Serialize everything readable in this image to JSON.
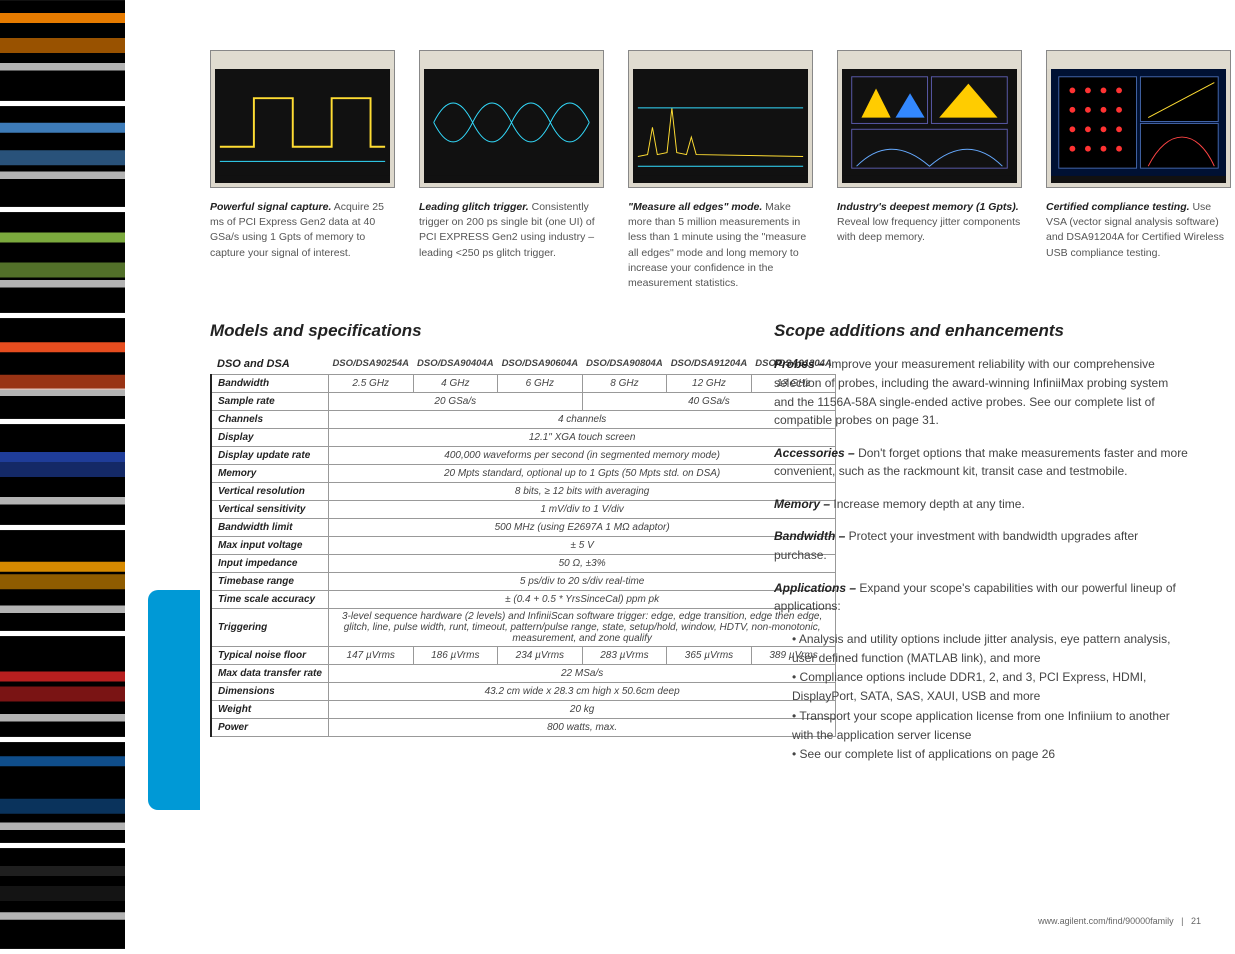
{
  "sidebar_colors": [
    "#ff8800",
    "#4488cc",
    "#88bb44",
    "#ff5522",
    "#2244aa",
    "#ee9900",
    "#cc2222",
    "#115599",
    "#222222"
  ],
  "shots": [
    {
      "title": "Powerful signal capture.",
      "desc": "Acquire 25 ms of PCI Express Gen2 data at 40 GSa/s using 1 Gpts of memory to capture your signal of interest.",
      "wave": "pulse"
    },
    {
      "title": "Leading glitch trigger.",
      "desc": "Consistently trigger on 200 ps single bit (one UI) of PCI EXPRESS Gen2 using industry – leading <250 ps glitch trigger.",
      "wave": "eye"
    },
    {
      "title": "\"Measure all edges\" mode.",
      "desc": "Make more than 5 million measurements in less than 1 minute using the \"measure all edges\" mode and long memory to increase your confidence in the measurement statistics.",
      "wave": "jitter"
    },
    {
      "title": "Industry's deepest memory (1 Gpts).",
      "desc": "Reveal low frequency jitter components with deep memory.",
      "wave": "hist"
    },
    {
      "title": "Certified compliance testing.",
      "desc": "Use VSA (vector signal analysis software) and DSA91204A for Certified Wireless USB compliance testing.",
      "wave": "constellation"
    }
  ],
  "heading_left": "Models and specifications",
  "table": {
    "header_label": "DSO and DSA",
    "models": [
      "DSO/DSA90254A",
      "DSO/DSA90404A",
      "DSO/DSA90604A",
      "DSO/DSA90804A",
      "DSO/DSA91204A",
      "DSO/DSA91304A"
    ],
    "rows": [
      {
        "label": "Bandwidth",
        "cells": [
          {
            "t": "2.5 GHz"
          },
          {
            "t": "4 GHz"
          },
          {
            "t": "6 GHz"
          },
          {
            "t": "8 GHz"
          },
          {
            "t": "12 GHz"
          },
          {
            "t": "13 GHz"
          }
        ]
      },
      {
        "label": "Sample rate",
        "cells": [
          {
            "t": "20 GSa/s",
            "span": 3
          },
          {
            "t": "40 GSa/s",
            "span": 3
          }
        ]
      },
      {
        "label": "Channels",
        "cells": [
          {
            "t": "4 channels",
            "span": 6
          }
        ]
      },
      {
        "label": "Display",
        "cells": [
          {
            "t": "12.1\" XGA touch screen",
            "span": 6
          }
        ]
      },
      {
        "label": "Display update rate",
        "cells": [
          {
            "t": "400,000 waveforms per second (in segmented memory mode)",
            "span": 6
          }
        ]
      },
      {
        "label": "Memory",
        "cells": [
          {
            "t": "20 Mpts standard, optional up to 1 Gpts (50 Mpts std. on DSA)",
            "span": 6
          }
        ]
      },
      {
        "label": "Vertical resolution",
        "cells": [
          {
            "t": "8 bits, ≥ 12 bits with averaging",
            "span": 6
          }
        ]
      },
      {
        "label": "Vertical sensitivity",
        "cells": [
          {
            "t": "1 mV/div to 1 V/div",
            "span": 6
          }
        ]
      },
      {
        "label": "Bandwidth limit",
        "cells": [
          {
            "t": "500 MHz (using E2697A 1 MΩ adaptor)",
            "span": 6
          }
        ]
      },
      {
        "label": "Max input voltage",
        "cells": [
          {
            "t": "± 5 V",
            "span": 6
          }
        ]
      },
      {
        "label": "Input impedance",
        "cells": [
          {
            "t": "50 Ω, ±3%",
            "span": 6
          }
        ]
      },
      {
        "label": "Timebase range",
        "cells": [
          {
            "t": "5 ps/div to 20 s/div real-time",
            "span": 6
          }
        ]
      },
      {
        "label": "Time scale accuracy",
        "cells": [
          {
            "t": "± (0.4 + 0.5 * YrsSinceCal) ppm pk",
            "span": 6
          }
        ]
      },
      {
        "label": "Triggering",
        "cells": [
          {
            "t": "3-level sequence hardware (2 levels) and InfiniiScan software trigger: edge, edge transition, edge then edge, glitch, line, pulse width, runt, timeout, pattern/pulse range, state, setup/hold, window, HDTV, non-monotonic, measurement, and zone qualify",
            "span": 6
          }
        ]
      },
      {
        "label": "Typical noise floor",
        "cells": [
          {
            "t": "147 µVrms"
          },
          {
            "t": "186 µVrms"
          },
          {
            "t": "234 µVrms"
          },
          {
            "t": "283 µVrms"
          },
          {
            "t": "365 µVrms"
          },
          {
            "t": "389 µVrms"
          }
        ]
      },
      {
        "label": "Max data transfer rate",
        "cells": [
          {
            "t": "22 MSa/s",
            "span": 6
          }
        ]
      },
      {
        "label": "Dimensions",
        "cells": [
          {
            "t": "43.2 cm wide x 28.3 cm high x 50.6cm deep",
            "span": 6
          }
        ]
      },
      {
        "label": "Weight",
        "cells": [
          {
            "t": "20 kg",
            "span": 6
          }
        ]
      },
      {
        "label": "Power",
        "cells": [
          {
            "t": "800 watts, max.",
            "span": 6
          }
        ]
      }
    ]
  },
  "heading_right": "Scope additions and enhancements",
  "right_paragraphs": [
    {
      "b": "Probes –",
      "t": " Improve your measurement reliability with our comprehensive selection of probes, including the award-winning InfiniiMax probing system and the 1156A-58A single-ended active probes.  See our complete list of compatible probes on page 31."
    },
    {
      "b": "Accessories –",
      "t": " Don't forget options that make measurements faster and more convenient, such as the rackmount kit, transit case and testmobile."
    },
    {
      "b": "Memory –",
      "t": " Increase memory depth at any time."
    },
    {
      "b": "Bandwidth –",
      "t": " Protect your investment with bandwidth upgrades after purchase."
    },
    {
      "b": "Applications –",
      "t": " Expand your scope's capabilities with our powerful lineup of applications:"
    }
  ],
  "right_bullets": [
    "Analysis and utility options include jitter analysis, eye pattern analysis, user defined function (MATLAB link), and more",
    "Compliance options include DDR1, 2, and 3, PCI Express, HDMI, DisplayPort, SATA, SAS, XAUI, USB and more",
    "Transport your scope application license from one Infiniium to another with the application server license",
    "See our complete list of applications on page 26"
  ],
  "footer_url": "www.agilent.com/find/90000family",
  "footer_page": "21"
}
